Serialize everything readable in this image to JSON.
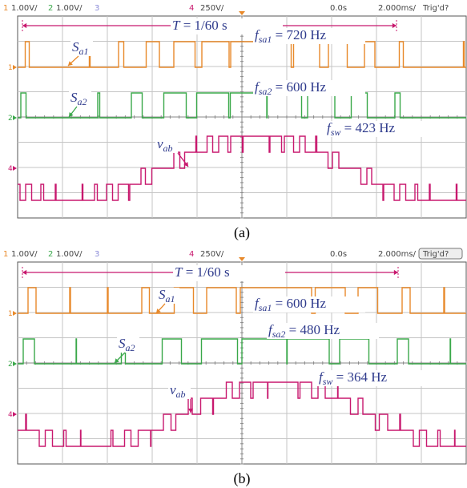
{
  "panels": [
    {
      "header": {
        "ch1": "1",
        "ch1_scale": "1.00V/",
        "ch2": "2",
        "ch2_scale": "1.00V/",
        "ch3": "3",
        "ch4": "4",
        "ch4_scale": "250V/",
        "delay": "0.0s",
        "timebase": "2.000ms/",
        "trigger": "Trig'd?"
      },
      "markers": [
        "1",
        "2",
        "4"
      ],
      "annotations": {
        "period": {
          "symbol": "T",
          "rest": " = 1/60 s"
        },
        "sa1": {
          "base": "S",
          "sub": "a1"
        },
        "sa2": {
          "base": "S",
          "sub": "a2"
        },
        "vab": {
          "base": "v",
          "sub": "ab"
        },
        "fsa1": {
          "base": "f",
          "sub": "sa1",
          "rest": " = 720 Hz"
        },
        "fsa2": {
          "base": "f",
          "sub": "sa2",
          "rest": " = 600 Hz"
        },
        "fsw": {
          "base": "f",
          "sub": "sw",
          "rest": " = 423 Hz"
        }
      },
      "caption": "(a)"
    },
    {
      "header": {
        "ch1": "1",
        "ch1_scale": "1.00V/",
        "ch2": "2",
        "ch2_scale": "1.00V/",
        "ch3": "3",
        "ch4": "4",
        "ch4_scale": "250V/",
        "delay": "0.0s",
        "timebase": "2.000ms/",
        "trigger": "Trig'd?"
      },
      "markers": [
        "1",
        "2",
        "4"
      ],
      "annotations": {
        "period": {
          "symbol": "T",
          "rest": " = 1/60 s"
        },
        "sa1": {
          "base": "S",
          "sub": "a1"
        },
        "sa2": {
          "base": "S",
          "sub": "a2"
        },
        "vab": {
          "base": "v",
          "sub": "ab"
        },
        "fsa1": {
          "base": "f",
          "sub": "sa1",
          "rest": " = 600 Hz"
        },
        "fsa2": {
          "base": "f",
          "sub": "sa2",
          "rest": " = 480 Hz"
        },
        "fsw": {
          "base": "f",
          "sub": "sw",
          "rest": " = 364 Hz"
        }
      },
      "caption": "(b)"
    }
  ]
}
